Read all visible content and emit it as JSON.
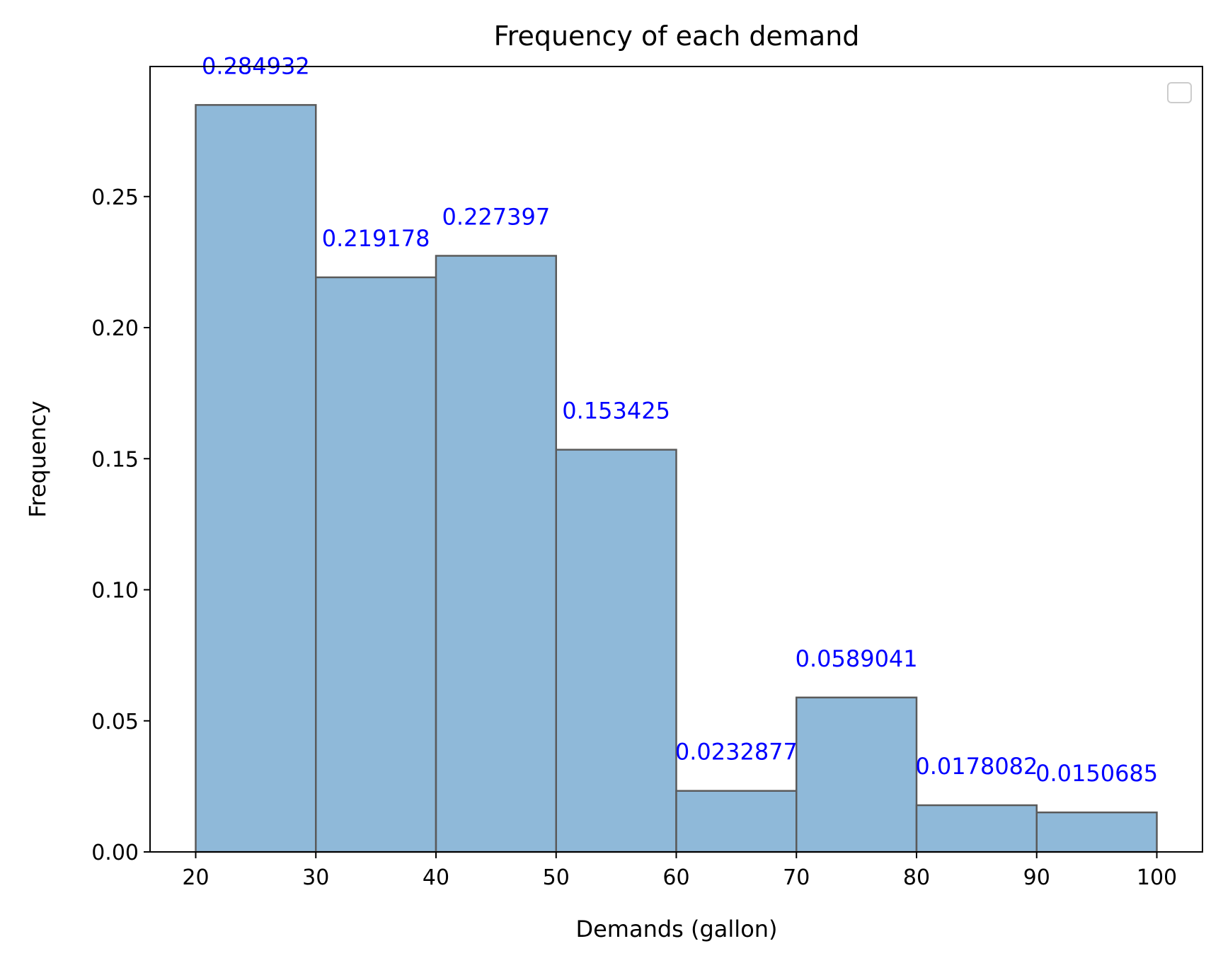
{
  "chart_data": {
    "type": "bar",
    "title": "Frequency of each demand",
    "xlabel": "Demands (gallon)",
    "ylabel": "Frequency",
    "bin_edges": [
      20,
      30,
      40,
      50,
      60,
      70,
      80,
      90,
      100
    ],
    "values": [
      0.284932,
      0.219178,
      0.227397,
      0.153425,
      0.0232877,
      0.0589041,
      0.0178082,
      0.0150685
    ],
    "value_labels": [
      "0.284932",
      "0.219178",
      "0.227397",
      "0.153425",
      "0.0232877",
      "0.0589041",
      "0.0178082",
      "0.0150685"
    ],
    "xlim": [
      16.2,
      103.8
    ],
    "ylim": [
      0,
      0.2996
    ],
    "xticks": [
      20,
      30,
      40,
      50,
      60,
      70,
      80,
      90,
      100
    ],
    "xtick_labels": [
      "20",
      "30",
      "40",
      "50",
      "60",
      "70",
      "80",
      "90",
      "100"
    ],
    "yticks": [
      0,
      0.05,
      0.1,
      0.15,
      0.2,
      0.25
    ],
    "ytick_labels": [
      "0.00",
      "0.05",
      "0.10",
      "0.15",
      "0.20",
      "0.25"
    ],
    "grid": false,
    "legend": {
      "placement": "top-right",
      "entries": []
    },
    "colors": {
      "bar_fill": "#8fb9d9",
      "bar_edge": "#5a5a5a",
      "label": "#0000ff"
    }
  }
}
